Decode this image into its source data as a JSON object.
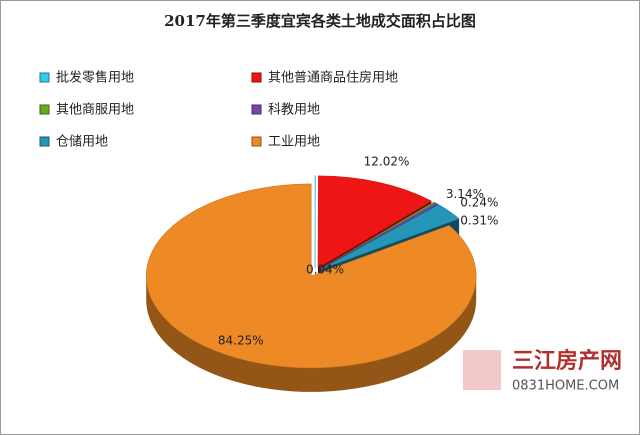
{
  "chart_data": {
    "type": "pie",
    "title": "2017年第三季度宜宾各类土地成交面积占比图",
    "categories": [
      "批发零售用地",
      "其他普通商品住房用地",
      "其他商服用地",
      "科教用地",
      "仓储用地",
      "工业用地"
    ],
    "values": [
      0.04,
      12.02,
      0.24,
      0.31,
      3.14,
      84.25
    ],
    "value_labels": [
      "0.04%",
      "12.02%",
      "0.24%",
      "0.31%",
      "3.14%",
      "84.25%"
    ],
    "colors": [
      "#33ccee",
      "#ee1515",
      "#66aa22",
      "#7a44aa",
      "#2696b8",
      "#ee8a25"
    ],
    "legend": "top",
    "annotations": [
      "三江房产网",
      "0831HOME.COM"
    ]
  }
}
